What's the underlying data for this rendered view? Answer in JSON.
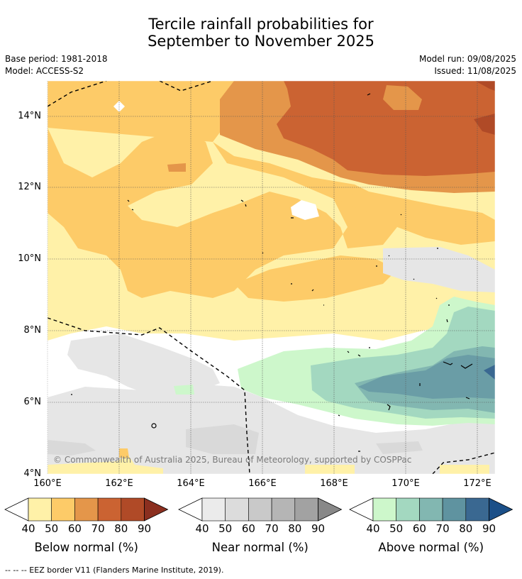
{
  "title_line1": "Tercile rainfall probabilities for",
  "title_line2": "September to November 2025",
  "base_period": "Base period: 1981-2018",
  "model": "Model: ACCESS-S2",
  "model_run": "Model run: 09/08/2025",
  "issued": "Issued: 11/08/2025",
  "map": {
    "lat_labels": [
      "14°N",
      "12°N",
      "10°N",
      "8°N",
      "6°N",
      "4°N"
    ],
    "lon_labels": [
      "160°E",
      "162°E",
      "164°E",
      "166°E",
      "168°E",
      "170°E",
      "172°E"
    ],
    "extent": {
      "lon": [
        160,
        172.5
      ],
      "lat": [
        4,
        15
      ]
    },
    "gridlines": true,
    "copyright": "© Commonwealth of Australia 2025, Bureau of Meteorology, supported by COSPPac"
  },
  "colorbars": [
    {
      "title": "Below normal (%)",
      "ticks": [
        "40",
        "50",
        "60",
        "70",
        "80",
        "90"
      ],
      "colors": [
        "#fff1a8",
        "#fdcb68",
        "#e4964a",
        "#cb6332",
        "#b04a27",
        "#8b2f1f"
      ]
    },
    {
      "title": "Near normal (%)",
      "ticks": [
        "40",
        "50",
        "60",
        "70",
        "80",
        "90"
      ],
      "colors": [
        "#ebebeb",
        "#dcdcdc",
        "#c9c9c9",
        "#b5b5b5",
        "#a2a2a2",
        "#888888"
      ]
    },
    {
      "title": "Above normal (%)",
      "ticks": [
        "40",
        "50",
        "60",
        "70",
        "80",
        "90"
      ],
      "colors": [
        "#cdf7cb",
        "#a3d8c0",
        "#82b7b1",
        "#5f93a0",
        "#3a6891",
        "#1b4f88"
      ]
    }
  ],
  "footnote": "-- -- -- EEZ border V11 (Flanders Marine Institute, 2019)."
}
